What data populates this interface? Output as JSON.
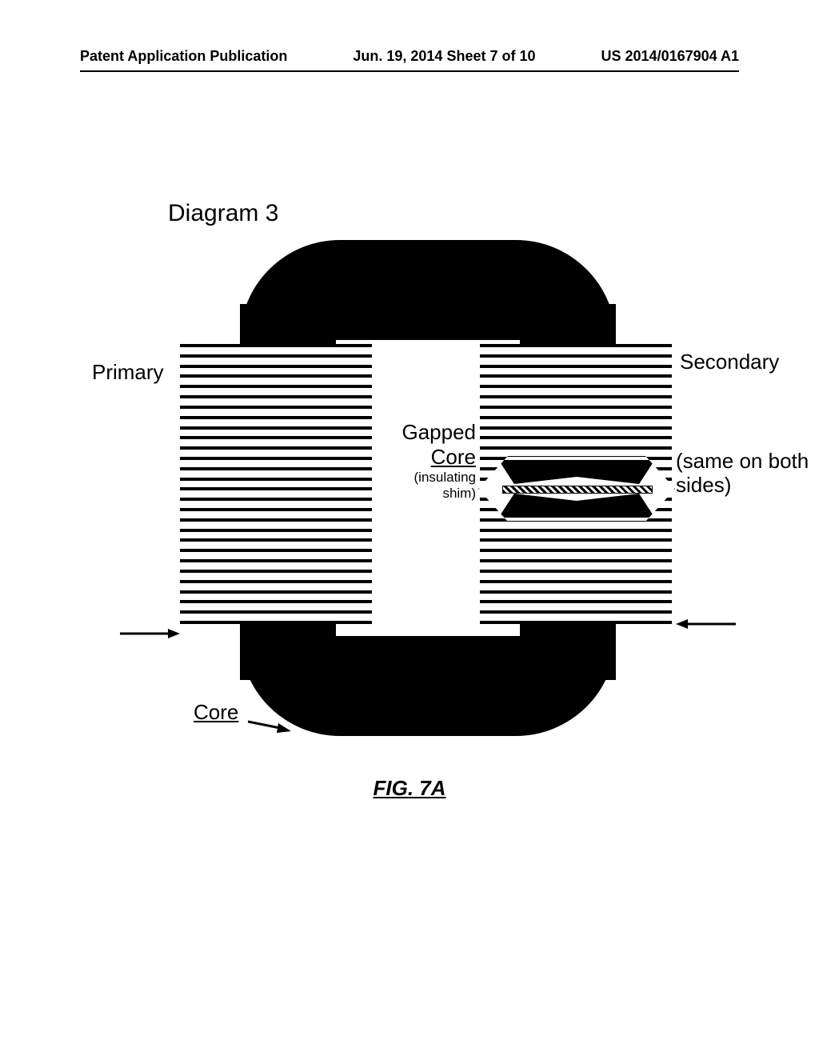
{
  "header": {
    "left": "Patent Application Publication",
    "center": "Jun. 19, 2014  Sheet 7 of 10",
    "right": "US 2014/0167904 A1"
  },
  "diagram": {
    "title": "Diagram 3",
    "figure_caption": "FIG. 7A",
    "labels": {
      "primary": "Primary",
      "secondary": "Secondary",
      "gapped_core": "Gapped Core",
      "gapped_core_underline_part": "Core",
      "insulating_shim": "(insulating shim)",
      "same_both": "(same on both sides)",
      "core": "Core",
      "core_underline_part": "Core"
    },
    "core": {
      "color": "#000000",
      "outer_width": 470,
      "outer_height": 620,
      "leg_width": 120,
      "yoke_height": 125,
      "window_radius": 30,
      "outer_radius": 140
    },
    "windings": {
      "turns_per_side": 28,
      "line_thickness": 4,
      "line_gap": 8,
      "coil_width": 240,
      "coil_height": 350,
      "color": "#000000"
    },
    "gap": {
      "shim_hatch_color": "#000000",
      "shim_height": 8
    },
    "background_color": "#ffffff",
    "font": {
      "header_size": 18,
      "label_size": 26,
      "sublabel_size": 17,
      "caption_size": 26
    }
  }
}
